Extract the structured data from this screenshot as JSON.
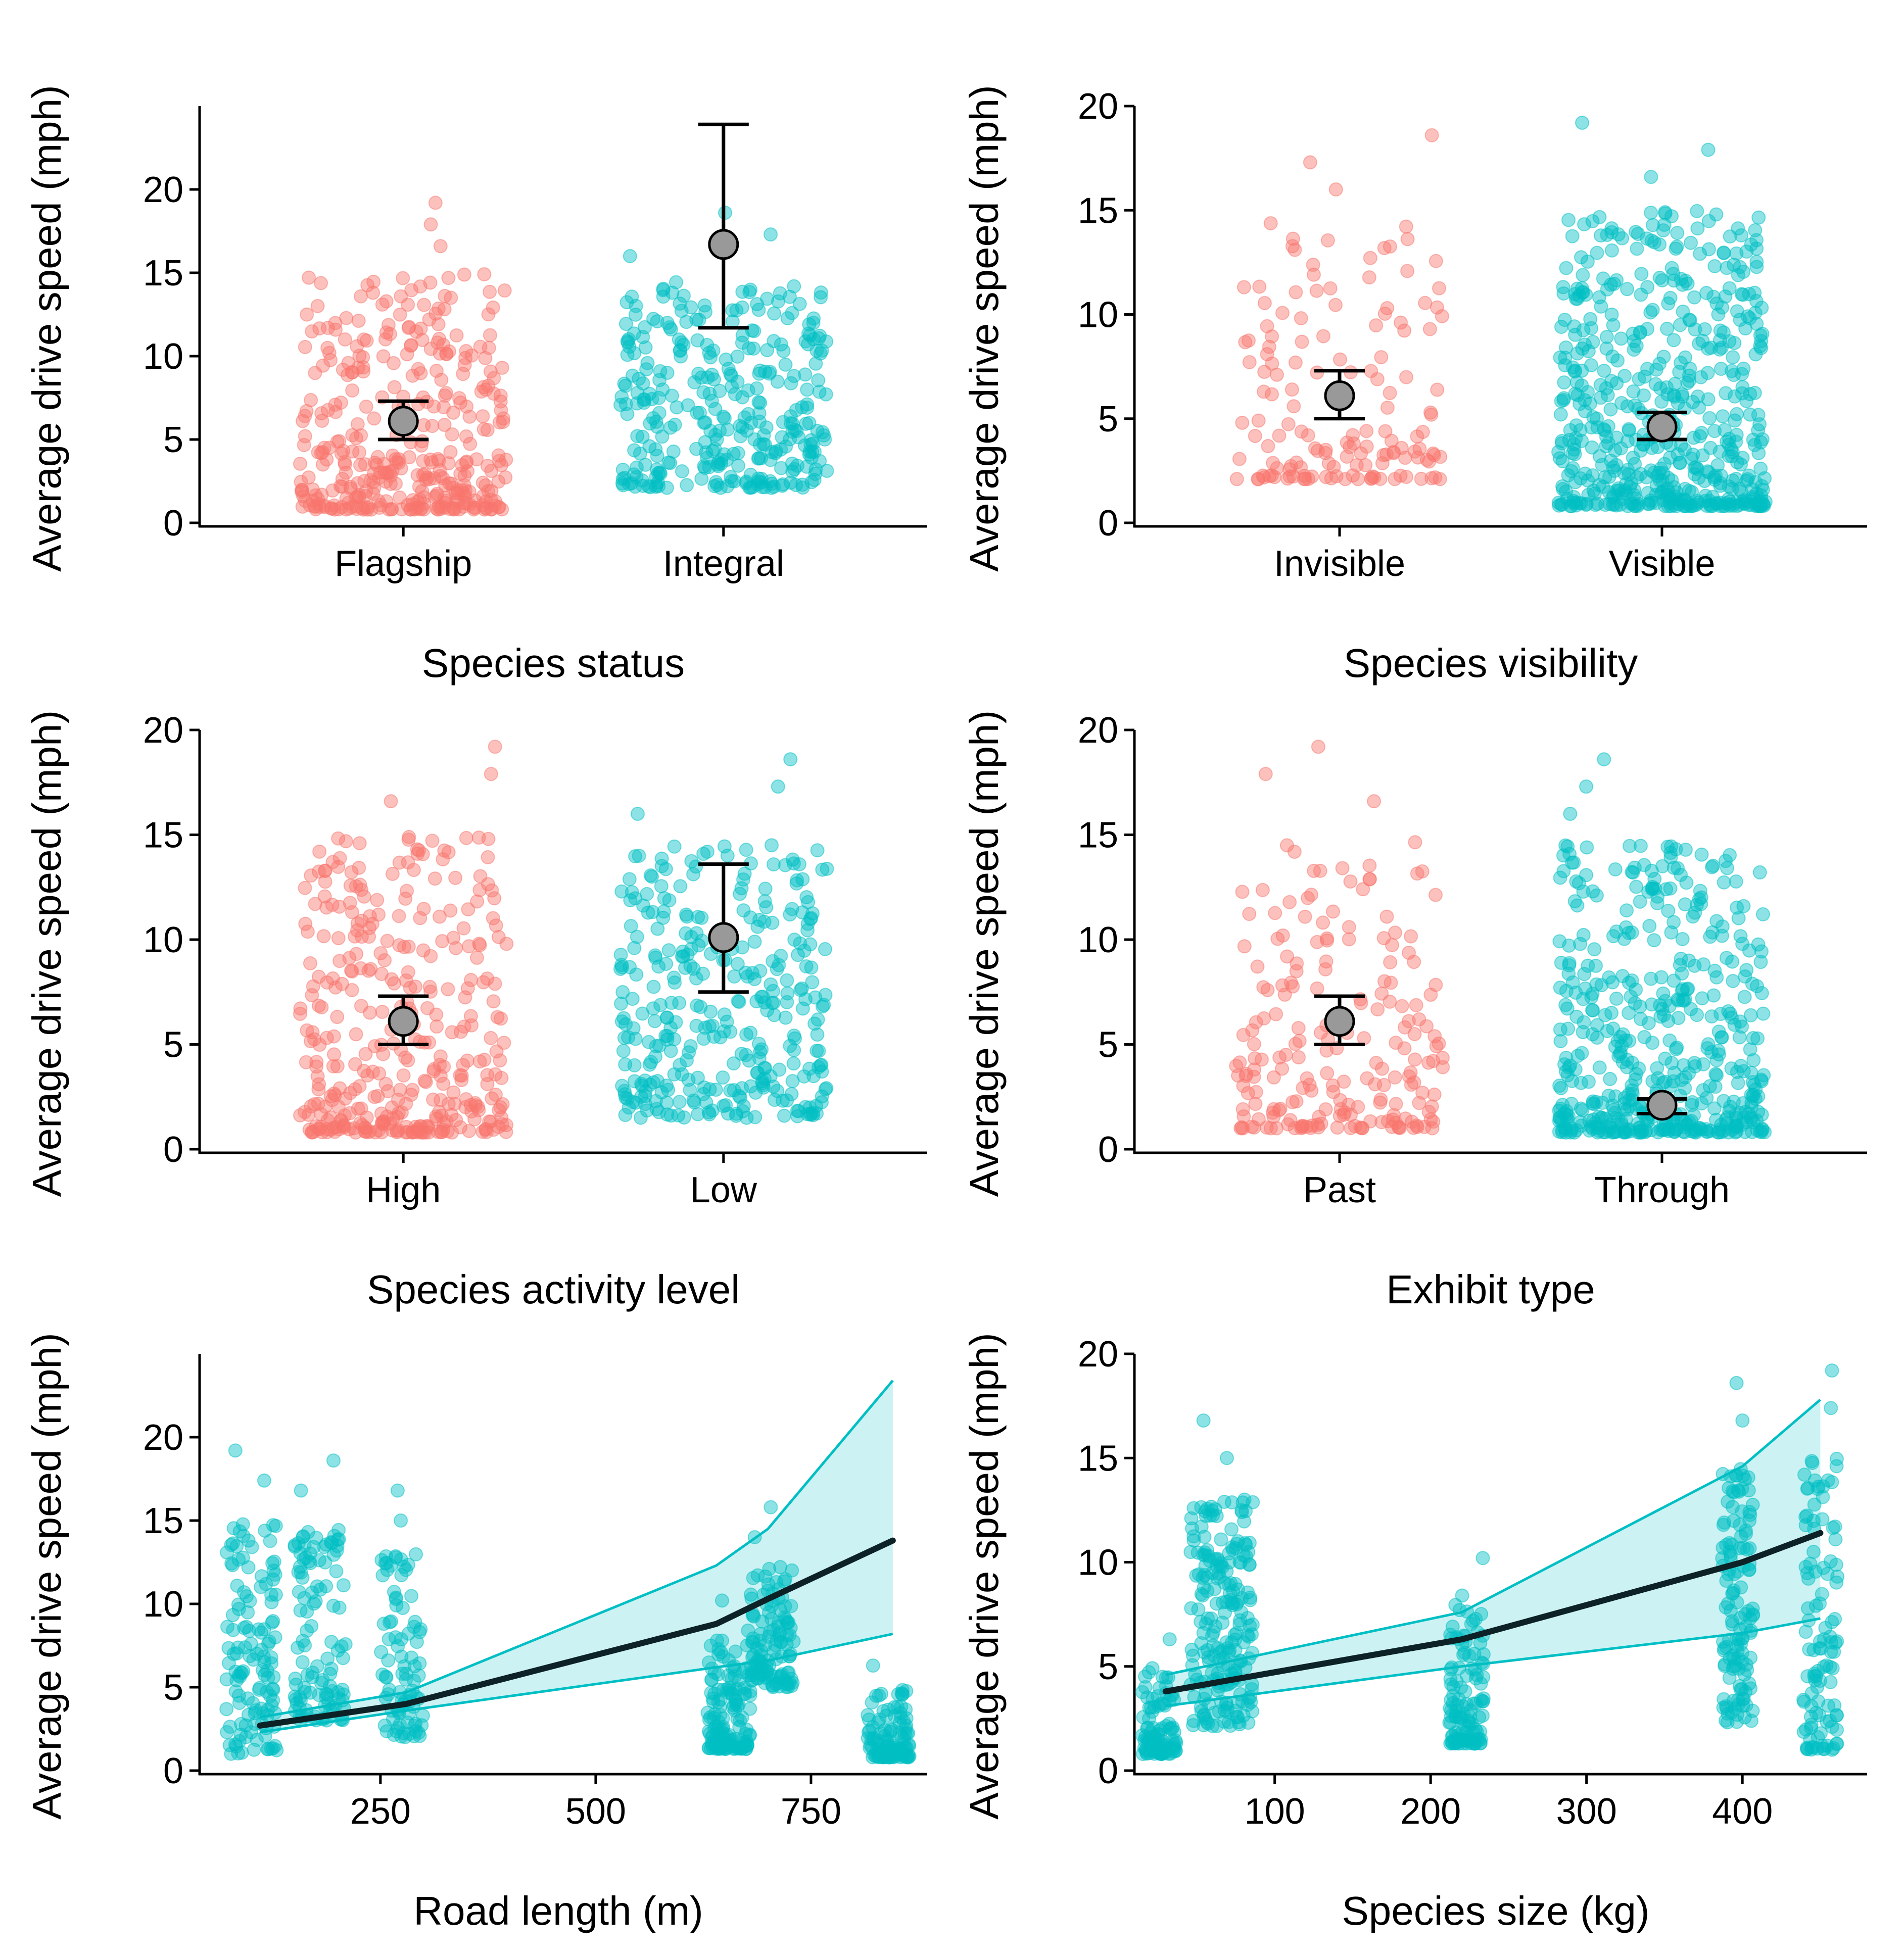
{
  "colors": {
    "group1": "#F8766D",
    "group2": "#00BFC4",
    "ribbon_fill": "#00BFC4",
    "fit_line": "#0d2226",
    "mean_point": "#999999"
  },
  "chart_data": [
    {
      "id": "status",
      "type": "scatter",
      "subtype": "jitter-categorical",
      "title": "Species status",
      "xlabel": "",
      "ylabel": "Average drive speed (mph)",
      "categories": [
        "Flagship",
        "Integral"
      ],
      "ylim": [
        0,
        25
      ],
      "yticks": [
        0,
        5,
        10,
        15,
        20
      ],
      "series": [
        {
          "name": "Flagship",
          "n": 380,
          "range": [
            0.8,
            19.2
          ],
          "mean": 6.1,
          "ci": [
            5.0,
            7.3
          ]
        },
        {
          "name": "Integral",
          "n": 330,
          "range": [
            2.1,
            18.6
          ],
          "mean": 16.7,
          "ci": [
            11.7,
            23.9
          ]
        }
      ]
    },
    {
      "id": "visibility",
      "type": "scatter",
      "subtype": "jitter-categorical",
      "title": "Species visibility",
      "xlabel": "",
      "ylabel": "Average drive speed (mph)",
      "categories": [
        "Invisible",
        "Visible"
      ],
      "ylim": [
        0,
        20
      ],
      "yticks": [
        0,
        5,
        10,
        15,
        20
      ],
      "series": [
        {
          "name": "Invisible",
          "n": 150,
          "range": [
            2.1,
            18.6
          ],
          "mean": 6.1,
          "ci": [
            5.0,
            7.3
          ]
        },
        {
          "name": "Visible",
          "n": 560,
          "range": [
            0.8,
            19.2
          ],
          "mean": 4.6,
          "ci": [
            4.0,
            5.3
          ]
        }
      ]
    },
    {
      "id": "activity",
      "type": "scatter",
      "subtype": "jitter-categorical",
      "title": "Species activity level",
      "xlabel": "",
      "ylabel": "Average drive speed (mph)",
      "categories": [
        "High",
        "Low"
      ],
      "ylim": [
        0,
        20
      ],
      "yticks": [
        0,
        5,
        10,
        15,
        20
      ],
      "series": [
        {
          "name": "High",
          "n": 370,
          "range": [
            0.8,
            19.2
          ],
          "mean": 6.1,
          "ci": [
            5.0,
            7.3
          ]
        },
        {
          "name": "Low",
          "n": 340,
          "range": [
            1.5,
            18.6
          ],
          "mean": 10.1,
          "ci": [
            7.5,
            13.6
          ]
        }
      ]
    },
    {
      "id": "exhibit",
      "type": "scatter",
      "subtype": "jitter-categorical",
      "title": "Exhibit type",
      "xlabel": "",
      "ylabel": "Average drive speed (mph)",
      "categories": [
        "Past",
        "Through"
      ],
      "ylim": [
        0,
        20
      ],
      "yticks": [
        0,
        5,
        10,
        15,
        20
      ],
      "series": [
        {
          "name": "Past",
          "n": 210,
          "range": [
            1.0,
            19.2
          ],
          "mean": 6.1,
          "ci": [
            5.0,
            7.3
          ]
        },
        {
          "name": "Through",
          "n": 500,
          "range": [
            0.8,
            18.6
          ],
          "mean": 2.1,
          "ci": [
            1.7,
            2.4
          ]
        }
      ]
    },
    {
      "id": "road",
      "type": "scatter",
      "subtype": "scatter-with-fit-and-ribbon",
      "title": "",
      "xlabel": "Road length (m)",
      "ylabel": "Average drive speed (mph)",
      "xlim": [
        40,
        885
      ],
      "ylim": [
        0,
        25
      ],
      "xticks": [
        250,
        500,
        750
      ],
      "yticks": [
        0,
        5,
        10,
        15,
        20
      ],
      "clusters": [
        {
          "x": 100,
          "spread": 30,
          "n": 130,
          "range": [
            1.0,
            19.2
          ]
        },
        {
          "x": 180,
          "spread": 30,
          "n": 110,
          "range": [
            3.0,
            18.6
          ]
        },
        {
          "x": 275,
          "spread": 25,
          "n": 90,
          "range": [
            2.0,
            16.8
          ]
        },
        {
          "x": 655,
          "spread": 25,
          "n": 140,
          "range": [
            1.3,
            10.2
          ]
        },
        {
          "x": 705,
          "spread": 25,
          "n": 120,
          "range": [
            5.0,
            15.8
          ]
        },
        {
          "x": 840,
          "spread": 25,
          "n": 120,
          "range": [
            0.8,
            6.3
          ]
        }
      ],
      "fit": {
        "x": [
          110,
          280,
          640,
          700,
          845
        ],
        "y": [
          2.7,
          4.0,
          8.8,
          10.3,
          13.8
        ]
      },
      "ribbon": {
        "x": [
          110,
          280,
          640,
          700,
          845
        ],
        "lower": [
          2.3,
          3.6,
          6.2,
          6.6,
          8.2
        ],
        "upper": [
          3.2,
          4.7,
          12.3,
          14.5,
          23.4
        ]
      }
    },
    {
      "id": "size",
      "type": "scatter",
      "subtype": "scatter-with-fit-and-ribbon",
      "title": "",
      "xlabel": "Species size (kg)",
      "ylabel": "Average drive speed (mph)",
      "xlim": [
        10,
        480
      ],
      "ylim": [
        0,
        20
      ],
      "xticks": [
        100,
        200,
        300,
        400
      ],
      "yticks": [
        0,
        5,
        10,
        15,
        20
      ],
      "clusters": [
        {
          "x": 26,
          "spread": 11,
          "n": 100,
          "range": [
            0.8,
            6.3
          ]
        },
        {
          "x": 66,
          "spread": 20,
          "n": 220,
          "range": [
            2.1,
            16.8
          ]
        },
        {
          "x": 223,
          "spread": 11,
          "n": 120,
          "range": [
            1.3,
            10.2
          ]
        },
        {
          "x": 397,
          "spread": 10,
          "n": 130,
          "range": [
            2.3,
            18.6
          ]
        },
        {
          "x": 450,
          "spread": 11,
          "n": 110,
          "range": [
            1.0,
            19.2
          ]
        }
      ],
      "fit": {
        "x": [
          30,
          220,
          400,
          450
        ],
        "y": [
          3.8,
          6.3,
          10.0,
          11.4
        ]
      },
      "ribbon": {
        "x": [
          30,
          220,
          400,
          450
        ],
        "lower": [
          3.1,
          5.0,
          6.6,
          7.3
        ],
        "upper": [
          4.6,
          7.6,
          14.6,
          17.8
        ]
      }
    }
  ]
}
